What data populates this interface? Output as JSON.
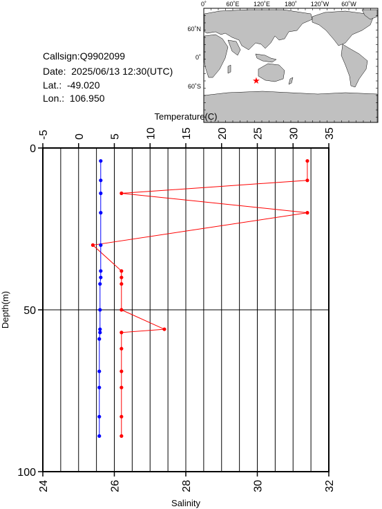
{
  "station": {
    "callsign": "Callsign:Q9902099",
    "date": "Date:  2025/06/13 12:30(UTC)",
    "lat": "Lat.:  -49.020",
    "lon": "Lon.:  106.950"
  },
  "map": {
    "top_labels": [
      "0˚",
      "60˚E",
      "120˚E",
      "180˚",
      "120˚W",
      "60˚W"
    ],
    "side_labels": [
      "60˚N",
      "0˚",
      "60˚S"
    ],
    "marker_color": "#ff0000",
    "ocean_color": "#ffffff",
    "land_color": "#c0c0c0"
  },
  "chart_data": {
    "type": "line",
    "top_axis": {
      "label": "Temperature(C)",
      "range": [
        -5,
        35
      ],
      "ticks": [
        -5,
        0,
        5,
        10,
        15,
        20,
        25,
        30,
        35
      ]
    },
    "bottom_axis": {
      "label": "Salinity",
      "range": [
        24,
        32
      ],
      "ticks": [
        24,
        26,
        28,
        30,
        32
      ]
    },
    "y_axis": {
      "label": "Depth(m)",
      "range": [
        0,
        100
      ],
      "ticks": [
        0,
        50,
        100
      ],
      "inverted": true
    },
    "grid": true,
    "series": [
      {
        "color": "#ff0000",
        "axis": "salinity",
        "points": [
          [
            31.4,
            4
          ],
          [
            31.4,
            10
          ],
          [
            26.2,
            14
          ],
          [
            31.4,
            20
          ],
          [
            25.4,
            30
          ],
          [
            26.2,
            38
          ],
          [
            26.2,
            40
          ],
          [
            26.2,
            42
          ],
          [
            26.2,
            50
          ],
          [
            27.4,
            56
          ],
          [
            26.2,
            57
          ],
          [
            26.2,
            62
          ],
          [
            26.2,
            69
          ],
          [
            26.2,
            74
          ],
          [
            26.2,
            83
          ],
          [
            26.2,
            89
          ]
        ]
      },
      {
        "color": "#0000ff",
        "axis": "temperature",
        "points": [
          [
            3.1,
            4
          ],
          [
            3.1,
            10
          ],
          [
            3.1,
            14
          ],
          [
            3.1,
            20
          ],
          [
            3.1,
            30
          ],
          [
            3.1,
            38
          ],
          [
            3.1,
            40
          ],
          [
            3.0,
            42
          ],
          [
            3.0,
            50
          ],
          [
            3.0,
            56
          ],
          [
            3.0,
            57
          ],
          [
            2.9,
            59
          ],
          [
            2.9,
            69
          ],
          [
            2.9,
            74
          ],
          [
            2.9,
            83
          ],
          [
            2.9,
            89
          ]
        ]
      }
    ]
  }
}
